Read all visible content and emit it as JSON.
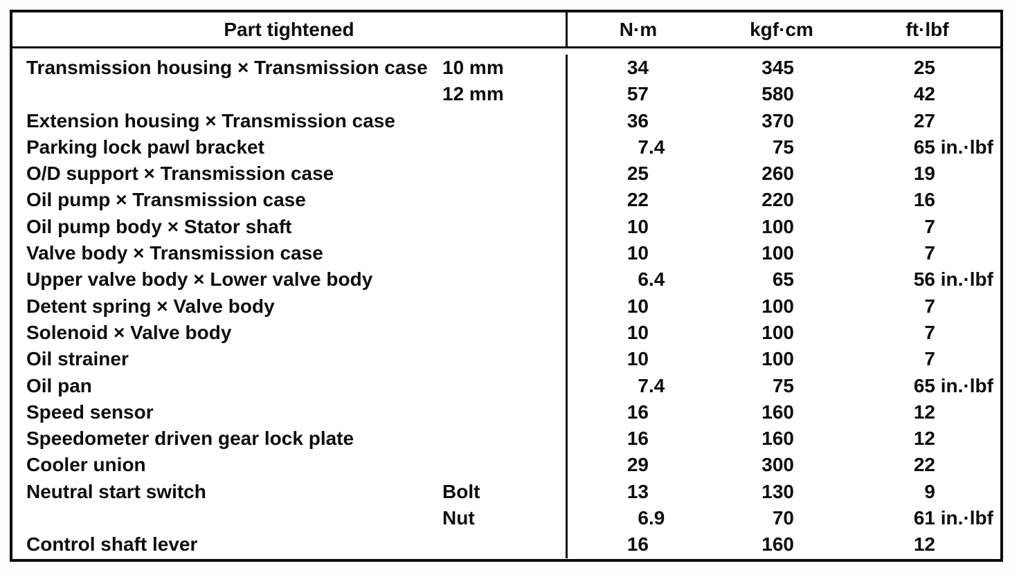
{
  "table": {
    "header": {
      "part": "Part tightened",
      "cols": [
        "N·m",
        "kgf·cm",
        "ft·lbf"
      ]
    },
    "rows": [
      {
        "part": "Transmission housing × Transmission case",
        "sub": "10 mm",
        "nm": "34",
        "kgfcm": "345",
        "ftlbf": "25"
      },
      {
        "part": "",
        "sub": "12 mm",
        "nm": "57",
        "kgfcm": "580",
        "ftlbf": "42"
      },
      {
        "part": "Extension housing × Transmission case",
        "sub": "",
        "nm": "36",
        "kgfcm": "370",
        "ftlbf": "27"
      },
      {
        "part": "Parking lock pawl bracket",
        "sub": "",
        "nm": "7.4",
        "kgfcm": "75",
        "ftlbf": "65 in.·lbf"
      },
      {
        "part": "O/D support × Transmission case",
        "sub": "",
        "nm": "25",
        "kgfcm": "260",
        "ftlbf": "19"
      },
      {
        "part": "Oil pump × Transmission case",
        "sub": "",
        "nm": "22",
        "kgfcm": "220",
        "ftlbf": "16"
      },
      {
        "part": "Oil pump body × Stator shaft",
        "sub": "",
        "nm": "10",
        "kgfcm": "100",
        "ftlbf": "7"
      },
      {
        "part": "Valve body × Transmission case",
        "sub": "",
        "nm": "10",
        "kgfcm": "100",
        "ftlbf": "7"
      },
      {
        "part": "Upper valve body × Lower valve body",
        "sub": "",
        "nm": "6.4",
        "kgfcm": "65",
        "ftlbf": "56 in.·lbf"
      },
      {
        "part": "Detent spring × Valve body",
        "sub": "",
        "nm": "10",
        "kgfcm": "100",
        "ftlbf": "7"
      },
      {
        "part": "Solenoid × Valve body",
        "sub": "",
        "nm": "10",
        "kgfcm": "100",
        "ftlbf": "7"
      },
      {
        "part": "Oil strainer",
        "sub": "",
        "nm": "10",
        "kgfcm": "100",
        "ftlbf": "7"
      },
      {
        "part": "Oil pan",
        "sub": "",
        "nm": "7.4",
        "kgfcm": "75",
        "ftlbf": "65 in.·lbf"
      },
      {
        "part": "Speed sensor",
        "sub": "",
        "nm": "16",
        "kgfcm": "160",
        "ftlbf": "12"
      },
      {
        "part": "Speedometer driven gear lock plate",
        "sub": "",
        "nm": "16",
        "kgfcm": "160",
        "ftlbf": "12"
      },
      {
        "part": "Cooler union",
        "sub": "",
        "nm": "29",
        "kgfcm": "300",
        "ftlbf": "22"
      },
      {
        "part": "Neutral start switch",
        "sub": "Bolt",
        "nm": "13",
        "kgfcm": "130",
        "ftlbf": "9"
      },
      {
        "part": "",
        "sub": "Nut",
        "nm": "6.9",
        "kgfcm": "70",
        "ftlbf": "61 in.·lbf"
      },
      {
        "part": "Control shaft lever",
        "sub": "",
        "nm": "16",
        "kgfcm": "160",
        "ftlbf": "12"
      }
    ]
  }
}
